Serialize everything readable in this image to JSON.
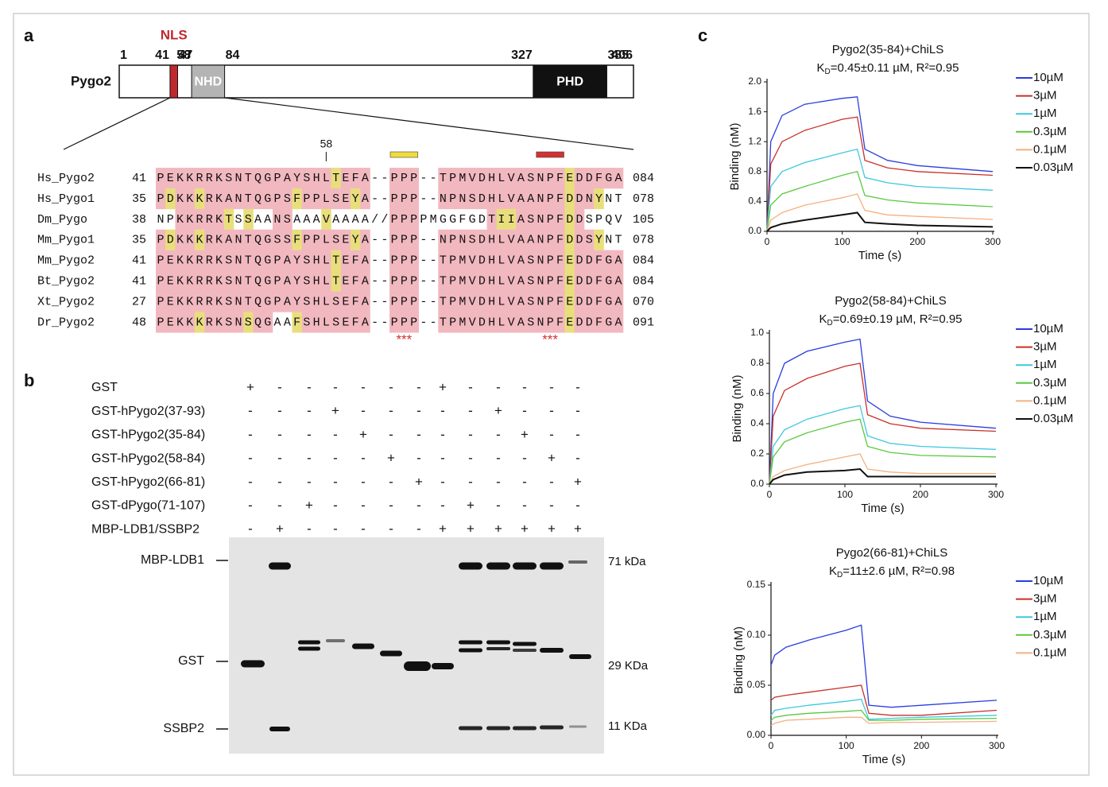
{
  "panel_labels": {
    "a": "a",
    "b": "b",
    "c": "c"
  },
  "domain_diagram": {
    "protein": "Pygo2",
    "positions": [
      1,
      41,
      47,
      58,
      84,
      327,
      385,
      406
    ],
    "length_range": [
      1,
      406
    ],
    "domains": [
      {
        "label": "NLS",
        "start": 41,
        "end": 47,
        "color": "#c0282d"
      },
      {
        "label": "NHD",
        "start": 58,
        "end": 84,
        "color": "#b4b4b4"
      },
      {
        "label": "PHD",
        "start": 327,
        "end": 385,
        "color": "#111111"
      }
    ]
  },
  "alignment": {
    "marker": 58,
    "motifs": [
      {
        "color": "#f0dc3c",
        "stars": "***"
      },
      {
        "color": "#d23232",
        "stars": "***"
      }
    ],
    "rows": [
      {
        "name": "Hs_Pygo2",
        "start": 41,
        "sequence": "PEKKRRKSNTQGPAYSHLTEFA--PPP--TPMVDHLVASNPFEDDFGA",
        "end": "084",
        "shading": "ppppppppppppppppppyppp..ppp..pppppppppppppyppppp"
      },
      {
        "name": "Hs_Pygo1",
        "start": 35,
        "sequence": "PDKKKRKANTQGPSFPPLSEYA--PPP--NPNSDHLVAANPFDDNYNT",
        "end": "078",
        "shading": "pyppypppppppppypppppyp..ppp..pppppppppppppyppy.."
      },
      {
        "name": "Dm_Pygo",
        "start": 38,
        "sequence": "NPKKRRKTSSAANSAAAVAAAA//PPPPMGGFGDTIIASNPFDDSPQV",
        "end": "105",
        "shading": "..pppppy.y..pp...y......ppp.......pyypppppyp...."
      },
      {
        "name": "Mm_Pygo1",
        "start": 35,
        "sequence": "PDKKKRKANTQGSSFPPLSEYA--PPP--NPNSDHLVAANPFDDSYNT",
        "end": "078",
        "shading": "pyppypppppppppypppppyp..ppp..pppppppppppppyppy.."
      },
      {
        "name": "Mm_Pygo2",
        "start": 41,
        "sequence": "PEKKRRKSNTQGPAYSHLTEFA--PPP--TPMVDHLVASNPFEDDFGA",
        "end": "084",
        "shading": "ppppppppppppppppppyppp..ppp..pppppppppppppyppppp"
      },
      {
        "name": "Bt_Pygo2",
        "start": 41,
        "sequence": "PEKKRRKSNTQGPAYSHLTEFA--PPP--TPMVDHLVASNPFEDDFGA",
        "end": "084",
        "shading": "ppppppppppppppppppyppp..ppp..pppppppppppppyppppp"
      },
      {
        "name": "Xt_Pygo2",
        "start": 27,
        "sequence": "PEKKRRKSNTQGPAYSHLSEFA--PPP--TPMVDHLVASNPFEDDFGA",
        "end": "070",
        "shading": "pppppppppppppppppppppp..ppp..pppppppppppppyppppp"
      },
      {
        "name": "Dr_Pygo2",
        "start": 48,
        "sequence": "PEKKKRKSNSQGAAFSHLSEFA--PPP--TPMVDHLVASNPFEDDFGA",
        "end": "091",
        "shading": "ppppyppppypp..yppppppp..ppp..pppppppppppppyppppp"
      }
    ]
  },
  "pulldown": {
    "rows": [
      {
        "label": "GST",
        "lanes": [
          "+",
          "-",
          "-",
          "-",
          "-",
          "-",
          "-",
          "+",
          "-",
          "-",
          "-",
          "-",
          "-"
        ]
      },
      {
        "label": "GST-hPygo2(37-93)",
        "lanes": [
          "-",
          "-",
          "-",
          "+",
          "-",
          "-",
          "-",
          "-",
          "-",
          "+",
          "-",
          "-",
          "-"
        ]
      },
      {
        "label": "GST-hPygo2(35-84)",
        "lanes": [
          "-",
          "-",
          "-",
          "-",
          "+",
          "-",
          "-",
          "-",
          "-",
          "-",
          "+",
          "-",
          "-"
        ]
      },
      {
        "label": "GST-hPygo2(58-84)",
        "lanes": [
          "-",
          "-",
          "-",
          "-",
          "-",
          "+",
          "-",
          "-",
          "-",
          "-",
          "-",
          "+",
          "-"
        ]
      },
      {
        "label": "GST-hPygo2(66-81)",
        "lanes": [
          "-",
          "-",
          "-",
          "-",
          "-",
          "-",
          "+",
          "-",
          "-",
          "-",
          "-",
          "-",
          "+"
        ]
      },
      {
        "label": "GST-dPygo(71-107)",
        "lanes": [
          "-",
          "-",
          "+",
          "-",
          "-",
          "-",
          "-",
          "-",
          "+",
          "-",
          "-",
          "-",
          "-"
        ]
      },
      {
        "label": "MBP-LDB1/SSBP2",
        "lanes": [
          "-",
          "+",
          "-",
          "-",
          "-",
          "-",
          "-",
          "+",
          "+",
          "+",
          "+",
          "+",
          "+"
        ]
      }
    ],
    "band_labels": [
      "MBP-LDB1",
      "GST",
      "SSBP2"
    ],
    "markers": [
      "71 kDa",
      "29 KDa",
      "11 KDa"
    ]
  },
  "chart_data": [
    {
      "type": "line",
      "title": "Pygo2(35-84)+ChiLS",
      "kd": {
        "symbol": "K",
        "subscript": "D",
        "text": "=0.45±0.11 µM, R²=0.95"
      },
      "xlabel": "Time (s)",
      "ylabel": "Binding (nM)",
      "x": [
        0,
        5,
        20,
        50,
        100,
        120,
        130,
        160,
        200,
        300
      ],
      "xlim": [
        0,
        300
      ],
      "xticks": [
        0,
        100,
        200,
        300
      ],
      "ylim": [
        0,
        2
      ],
      "yticks": [
        {
          "value": 0,
          "label": "0.0"
        },
        0.4,
        0.8,
        1.2,
        1.6,
        {
          "value": 2,
          "label": "2.0"
        }
      ],
      "series": [
        {
          "name": "10µM",
          "color": "#2a3de0",
          "values": [
            0,
            1.2,
            1.55,
            1.7,
            1.78,
            1.8,
            1.1,
            0.95,
            0.88,
            0.8
          ]
        },
        {
          "name": "3µM",
          "color": "#c8302a",
          "values": [
            0,
            0.9,
            1.2,
            1.35,
            1.5,
            1.53,
            0.95,
            0.85,
            0.8,
            0.75
          ]
        },
        {
          "name": "1µM",
          "color": "#3fc8e0",
          "values": [
            0,
            0.6,
            0.8,
            0.92,
            1.05,
            1.1,
            0.72,
            0.65,
            0.6,
            0.55
          ]
        },
        {
          "name": "0.3µM",
          "color": "#5ac840",
          "values": [
            0,
            0.35,
            0.5,
            0.6,
            0.75,
            0.8,
            0.48,
            0.42,
            0.38,
            0.33
          ]
        },
        {
          "name": "0.1µM",
          "color": "#f4b080",
          "values": [
            0,
            0.15,
            0.25,
            0.35,
            0.45,
            0.5,
            0.28,
            0.22,
            0.2,
            0.16
          ]
        },
        {
          "name": "0.03µM",
          "color": "#111111",
          "values": [
            0,
            0.05,
            0.1,
            0.15,
            0.22,
            0.25,
            0.12,
            0.1,
            0.08,
            0.06
          ]
        }
      ]
    },
    {
      "type": "line",
      "title": "Pygo2(58-84)+ChiLS",
      "kd": {
        "symbol": "K",
        "subscript": "D",
        "text": "=0.69±0.19 µM, R²=0.95"
      },
      "xlabel": "Time (s)",
      "ylabel": "Binding (nM)",
      "x": [
        0,
        5,
        20,
        50,
        100,
        120,
        130,
        160,
        200,
        300
      ],
      "xlim": [
        0,
        300
      ],
      "xticks": [
        0,
        100,
        200,
        300
      ],
      "ylim": [
        0,
        1
      ],
      "yticks": [
        {
          "value": 0,
          "label": "0.0"
        },
        0.2,
        0.4,
        0.6,
        0.8,
        {
          "value": 1,
          "label": "1.0"
        }
      ],
      "series": [
        {
          "name": "10µM",
          "color": "#2a3de0",
          "values": [
            0,
            0.6,
            0.8,
            0.88,
            0.94,
            0.96,
            0.55,
            0.45,
            0.41,
            0.37
          ]
        },
        {
          "name": "3µM",
          "color": "#c8302a",
          "values": [
            0,
            0.45,
            0.62,
            0.7,
            0.78,
            0.8,
            0.46,
            0.4,
            0.37,
            0.35
          ]
        },
        {
          "name": "1µM",
          "color": "#3fc8e0",
          "values": [
            0,
            0.25,
            0.36,
            0.43,
            0.5,
            0.52,
            0.32,
            0.27,
            0.25,
            0.23
          ]
        },
        {
          "name": "0.3µM",
          "color": "#5ac840",
          "values": [
            0,
            0.18,
            0.28,
            0.34,
            0.41,
            0.43,
            0.25,
            0.21,
            0.19,
            0.18
          ]
        },
        {
          "name": "0.1µM",
          "color": "#f4b080",
          "values": [
            0,
            0.05,
            0.09,
            0.13,
            0.18,
            0.2,
            0.1,
            0.08,
            0.07,
            0.07
          ]
        },
        {
          "name": "0.03µM",
          "color": "#111111",
          "values": [
            0,
            0.03,
            0.06,
            0.08,
            0.09,
            0.1,
            0.05,
            0.05,
            0.05,
            0.05
          ]
        }
      ]
    },
    {
      "type": "line",
      "title": "Pygo2(66-81)+ChiLS",
      "kd": {
        "symbol": "K",
        "subscript": "D",
        "text": "=11±2.6 µM, R²=0.98"
      },
      "xlabel": "Time (s)",
      "ylabel": "Binding (nM)",
      "x": [
        0,
        5,
        20,
        50,
        100,
        120,
        130,
        160,
        200,
        300
      ],
      "xlim": [
        0,
        300
      ],
      "xticks": [
        0,
        100,
        200,
        300
      ],
      "ylim": [
        0,
        0.15
      ],
      "yticks": [
        {
          "value": 0,
          "label": "0.00"
        },
        {
          "value": 0.05,
          "label": "0.05"
        },
        {
          "value": 0.1,
          "label": "0.10"
        },
        {
          "value": 0.15,
          "label": "0.15"
        }
      ],
      "series": [
        {
          "name": "10µM",
          "color": "#2a3de0",
          "values": [
            0.07,
            0.08,
            0.088,
            0.095,
            0.105,
            0.11,
            0.03,
            0.028,
            0.03,
            0.035
          ]
        },
        {
          "name": "3µM",
          "color": "#c8302a",
          "values": [
            0.035,
            0.038,
            0.04,
            0.043,
            0.048,
            0.05,
            0.022,
            0.02,
            0.02,
            0.025
          ]
        },
        {
          "name": "1µM",
          "color": "#3fc8e0",
          "values": [
            0.02,
            0.025,
            0.027,
            0.03,
            0.034,
            0.036,
            0.016,
            0.017,
            0.018,
            0.02
          ]
        },
        {
          "name": "0.3µM",
          "color": "#5ac840",
          "values": [
            0.015,
            0.018,
            0.02,
            0.022,
            0.024,
            0.025,
            0.015,
            0.015,
            0.016,
            0.017
          ]
        },
        {
          "name": "0.1µM",
          "color": "#f4b080",
          "values": [
            0.01,
            0.012,
            0.015,
            0.016,
            0.018,
            0.018,
            0.012,
            0.013,
            0.013,
            0.014
          ]
        }
      ]
    }
  ]
}
